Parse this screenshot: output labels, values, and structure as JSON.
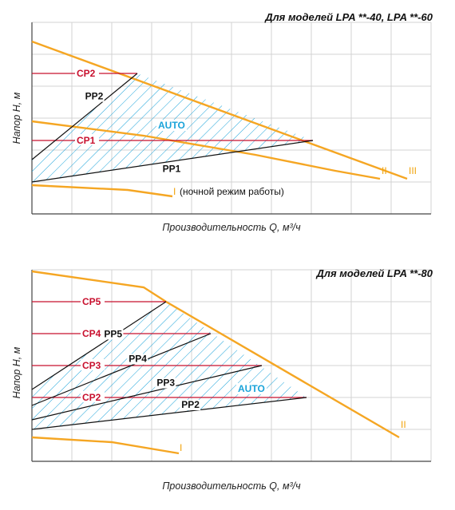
{
  "colors": {
    "orange": "#f5a623",
    "red": "#c8102e",
    "cyan": "#1aa3d9",
    "black": "#111111",
    "grid": "#d3d3d3"
  },
  "chart_data": [
    {
      "type": "line",
      "title": "Для моделей LPA **-40, LPA **-60",
      "xlabel": "Производительность Q, м³/ч",
      "ylabel": "Напор H, м",
      "grid": true,
      "speed_curves": [
        {
          "label": "III",
          "points": [
            [
              0,
              5.4
            ],
            [
              11.75,
              1.1
            ]
          ]
        },
        {
          "label": "II",
          "points": [
            [
              0,
              2.9
            ],
            [
              3.5,
              2.45
            ],
            [
              7,
              1.85
            ],
            [
              9.5,
              1.35
            ],
            [
              10.9,
              1.1
            ]
          ]
        },
        {
          "label": "I",
          "points": [
            [
              0,
              0.9
            ],
            [
              3,
              0.75
            ],
            [
              4.4,
              0.55
            ]
          ],
          "note": "(ночной режим работы)"
        }
      ],
      "constant_pressure": [
        {
          "label": "CP2",
          "h": 4.4,
          "q_end": 3.3
        },
        {
          "label": "CP1",
          "h": 2.3,
          "q_end": 8.8
        }
      ],
      "proportional_pressure": [
        {
          "label": "PP2",
          "from": [
            0,
            1.7
          ],
          "to": [
            3.3,
            4.4
          ]
        },
        {
          "label": "PP1",
          "from": [
            0,
            1.0
          ],
          "to": [
            8.8,
            2.3
          ]
        }
      ],
      "auto_region_label": "AUTO"
    },
    {
      "type": "line",
      "title": "Для моделей LPA **-80",
      "xlabel": "Производительность Q, м³/ч",
      "ylabel": "Напор H, м",
      "grid": true,
      "speed_curves": [
        {
          "label": "II",
          "points": [
            [
              0,
              5.2
            ],
            [
              3.5,
              4.7
            ],
            [
              4.2,
              4.25
            ],
            [
              11.5,
              0
            ]
          ]
        },
        {
          "label": "I",
          "points": [
            [
              0,
              0
            ],
            [
              2.5,
              -0.15
            ],
            [
              4.6,
              -0.5
            ]
          ]
        }
      ],
      "constant_pressure": [
        {
          "label": "CP5",
          "h": 4.25,
          "q_end": 4.2
        },
        {
          "label": "CP4",
          "h": 3.25,
          "q_end": 5.6
        },
        {
          "label": "CP3",
          "h": 2.25,
          "q_end": 7.2
        },
        {
          "label": "CP2",
          "h": 1.25,
          "q_end": 8.6
        }
      ],
      "proportional_pressure": [
        {
          "label": "PP5",
          "from": [
            0,
            1.5
          ],
          "to": [
            4.2,
            4.25
          ]
        },
        {
          "label": "PP4",
          "from": [
            0,
            1.0
          ],
          "to": [
            5.6,
            3.25
          ]
        },
        {
          "label": "PP3",
          "from": [
            0,
            0.55
          ],
          "to": [
            7.2,
            2.25
          ]
        },
        {
          "label": "PP2",
          "from": [
            0,
            0.25
          ],
          "to": [
            8.6,
            1.25
          ]
        }
      ],
      "auto_region_label": "AUTO"
    }
  ]
}
